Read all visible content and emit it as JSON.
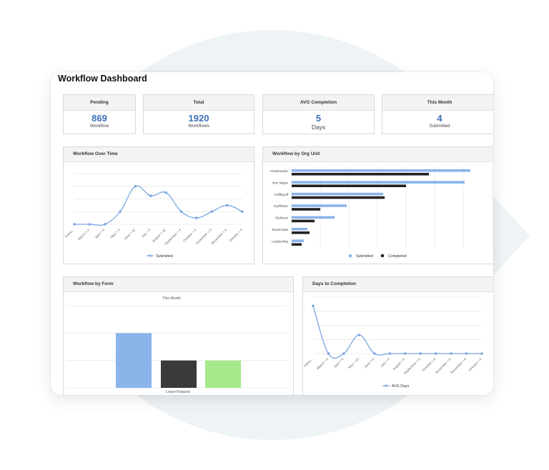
{
  "dashboard": {
    "title": "Workflow Dashboard"
  },
  "cards": [
    {
      "title": "Pending",
      "value": "869",
      "subtitle": "Workflow"
    },
    {
      "title": "Total",
      "value": "1920",
      "subtitle": "Workflows"
    },
    {
      "title": "AVG Completion",
      "value": "5",
      "subtitle": "Days"
    },
    {
      "title": "This Month",
      "value": "4",
      "subtitle": "Submitted"
    }
  ],
  "panels": {
    "over_time": {
      "title": "Workflow Over Time"
    },
    "org_unit": {
      "title": "Workflow by Org Unit"
    },
    "by_form": {
      "title": "Workflow by Form"
    },
    "days_completion": {
      "title": "Days to Completion"
    }
  },
  "colors": {
    "accent": "#3d6fb6",
    "line": "#7aa7e0",
    "submitted_bar": "#8ab4ea",
    "completed_bar": "#222222",
    "form_bar_blue": "#8ab4ea",
    "form_bar_dark": "#3a3a3d",
    "form_bar_green": "#a6e88a"
  },
  "chart_data": [
    {
      "type": "line",
      "title": "Workflow Over Time",
      "categories": [
        "Febru...",
        "March = 0",
        "April = 0",
        "May = 4",
        "June = 12",
        "July = 9",
        "August = 10",
        "September = 4",
        "October = 2",
        "November = 4",
        "December = 6",
        "January = 4"
      ],
      "series": [
        {
          "name": "Submitted",
          "values": [
            0,
            0,
            0,
            4,
            12,
            9,
            10,
            4,
            2,
            4,
            6,
            4
          ]
        }
      ],
      "ylim": [
        0,
        16
      ],
      "grid": true,
      "legend": "bottom"
    },
    {
      "type": "bar",
      "orientation": "horizontal",
      "title": "Workflow by Org Unit",
      "categories": [
        "Headmaster",
        "Non Magic",
        "Hufflepuff",
        "Gryffindor",
        "Slytherin",
        "Ravenclaw",
        "Leadership"
      ],
      "series": [
        {
          "name": "Submitted",
          "values": [
            250,
            242,
            128,
            77,
            60,
            22,
            17
          ]
        },
        {
          "name": "Completed",
          "values": [
            192,
            160,
            130,
            40,
            32,
            25,
            14
          ]
        }
      ],
      "xlim": [
        0,
        280
      ],
      "grid": true,
      "legend": "bottom"
    },
    {
      "type": "bar",
      "title": "Workflow by Form",
      "subtitle": "This Month",
      "categories": [
        "Leave Request"
      ],
      "series": [
        {
          "values": [
            4
          ]
        },
        {
          "values": [
            2
          ]
        },
        {
          "values": [
            2
          ]
        }
      ],
      "ylim": [
        0,
        6
      ],
      "grid": true
    },
    {
      "type": "line",
      "title": "Days to Completion",
      "categories": [
        "Febru...",
        "March = 0",
        "April = 0",
        "May = 43",
        "June = 0",
        "July = 0",
        "August = 0",
        "September = 0",
        "October = 0",
        "November = 0",
        "December = 0",
        "January = 0"
      ],
      "series": [
        {
          "name": "AVG Days",
          "values": [
            110,
            0,
            0,
            43,
            0,
            0,
            0,
            0,
            0,
            0,
            0,
            0
          ]
        }
      ],
      "ylim": [
        0,
        130
      ],
      "grid": true,
      "legend": "bottom"
    }
  ]
}
